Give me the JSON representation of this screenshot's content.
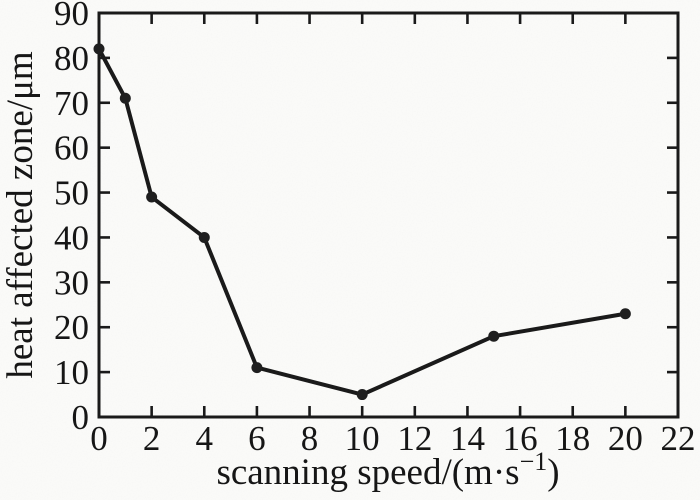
{
  "chart_data": {
    "type": "line",
    "title": "",
    "xlabel": "scanning speed/(m·s⁻¹)",
    "xlabel_parts": {
      "prefix": "scanning speed/(m·s",
      "sup": "−1",
      "suffix": ")"
    },
    "ylabel": "heat affected zone/μm",
    "x": [
      0,
      1,
      2,
      4,
      6,
      10,
      15,
      20
    ],
    "y": [
      82,
      71,
      49,
      40,
      11,
      5,
      18,
      23
    ],
    "xlim": [
      0,
      22
    ],
    "ylim": [
      0,
      90
    ],
    "xticks": [
      0,
      2,
      4,
      6,
      8,
      10,
      12,
      14,
      16,
      18,
      20,
      22
    ],
    "yticks": [
      0,
      10,
      20,
      30,
      40,
      50,
      60,
      70,
      80,
      90
    ],
    "grid": false,
    "legend": null,
    "series_name": "heat affected zone",
    "marker": "circle",
    "line_color": "#1a1a1a",
    "marker_color": "#1f1f1f",
    "frame_color": "#1a1a1a",
    "background": "#fcfcfa"
  }
}
